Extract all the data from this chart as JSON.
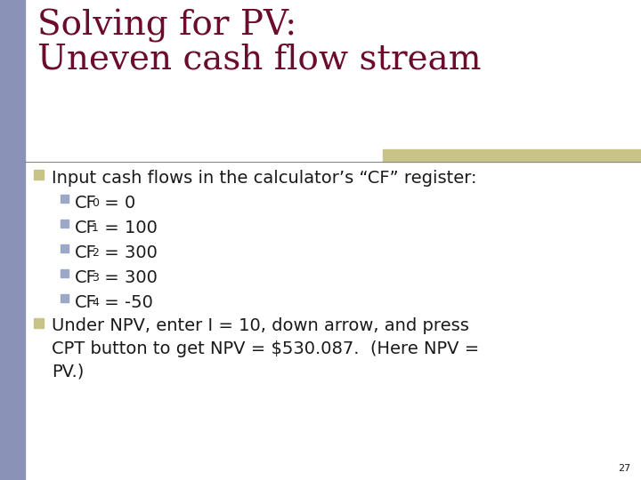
{
  "title_line1": "Solving for PV:",
  "title_line2": "Uneven cash flow stream",
  "title_color": "#6B0C2B",
  "left_bar_color": "#8B92B8",
  "top_right_bar_color": "#C8C488",
  "main_bullet_color": "#C8C488",
  "sub_bullet_color": "#9BA8C8",
  "text_color": "#1A1A1A",
  "background_color": "#FFFFFF",
  "separator_line_color": "#888888",
  "bullet1_text": "Input cash flows in the calculator’s “CF” register:",
  "sub_scripts": [
    "0",
    "1",
    "2",
    "3",
    "4"
  ],
  "cf_values": [
    " = 0",
    " = 100",
    " = 300",
    " = 300",
    " = -50"
  ],
  "bullet2_line1": "Under NPV, enter I = 10, down arrow, and press",
  "bullet2_line2": "CPT button to get NPV = $530.087.  (Here NPV =",
  "bullet2_line3": "PV.)",
  "page_number": "27",
  "title_fontsize": 28,
  "body_fontsize": 14,
  "sub_fontsize": 9
}
